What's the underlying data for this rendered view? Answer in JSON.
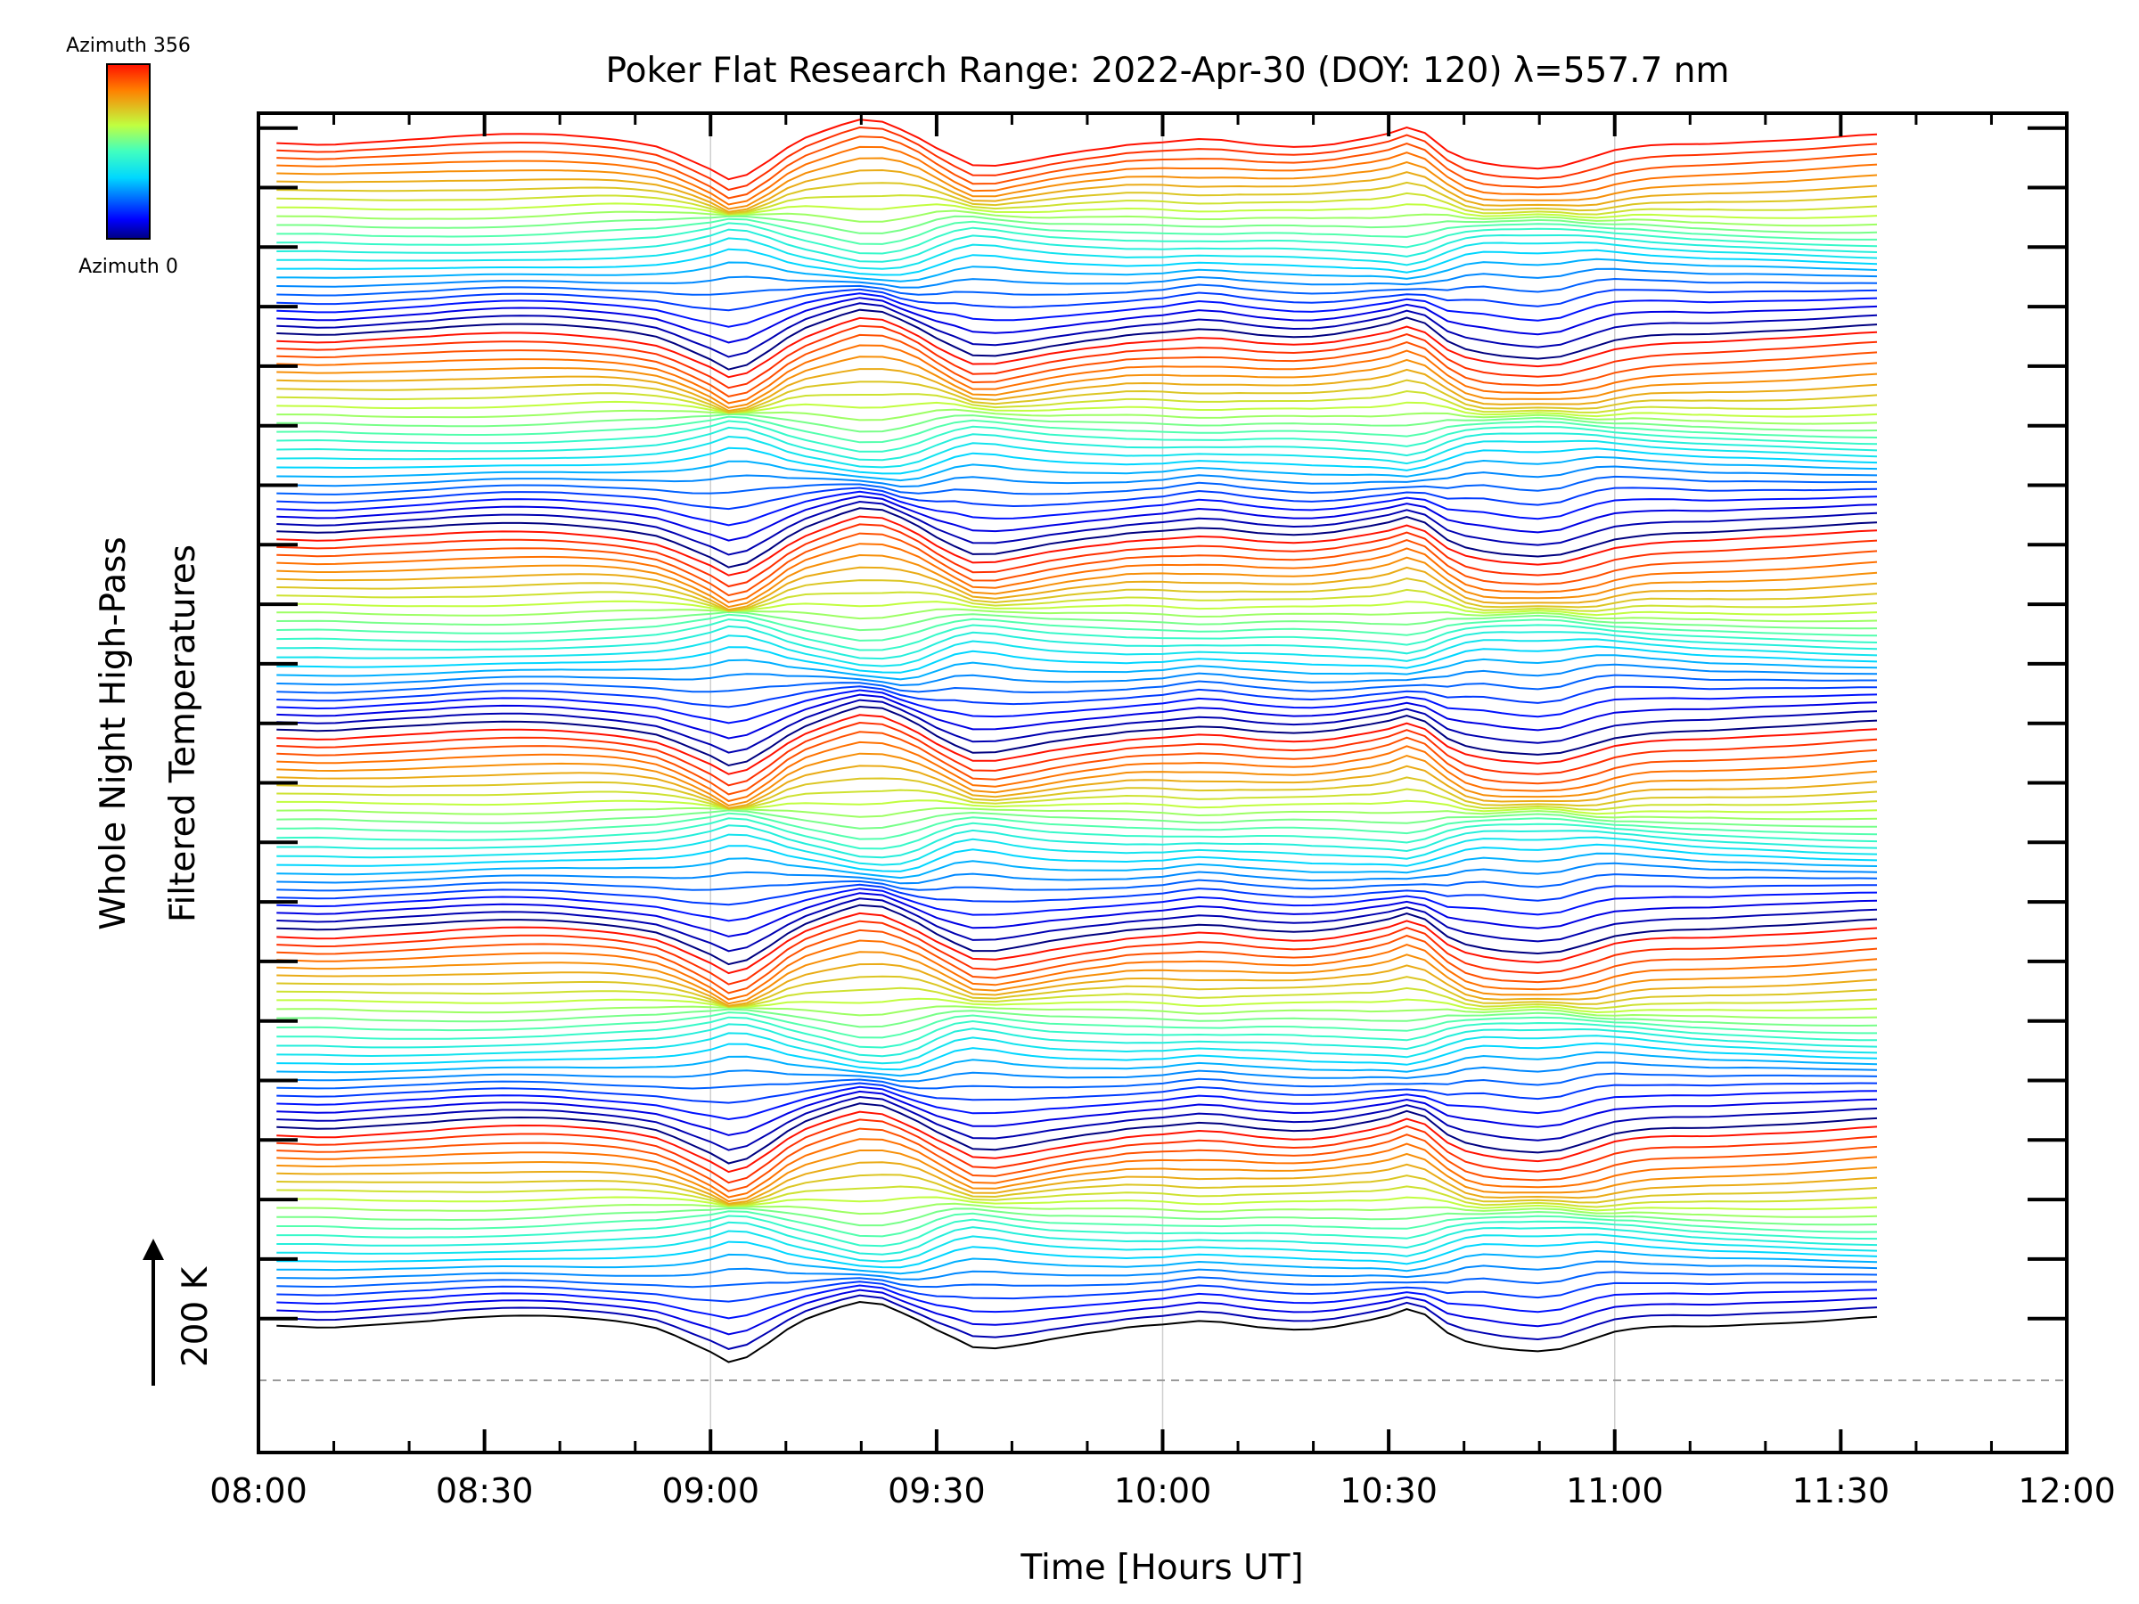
{
  "chart_data": {
    "type": "line",
    "title": "Poker Flat Research Range: 2022-Apr-30 (DOY: 120) λ=557.7 nm",
    "xlabel": "Time [Hours UT]",
    "ylabel_line1": "Whole Night High-Pass",
    "ylabel_line2": "Filtered Temperatures",
    "scale_label": "200 K",
    "xlim_hours": [
      8.0,
      12.0
    ],
    "x_ticks": [
      {
        "label": "08:00",
        "value": 8.0
      },
      {
        "label": "08:30",
        "value": 8.5
      },
      {
        "label": "09:00",
        "value": 9.0
      },
      {
        "label": "09:30",
        "value": 9.5
      },
      {
        "label": "10:00",
        "value": 10.0
      },
      {
        "label": "10:30",
        "value": 10.5
      },
      {
        "label": "11:00",
        "value": 11.0
      },
      {
        "label": "11:30",
        "value": 11.5
      },
      {
        "label": "12:00",
        "value": 12.0
      }
    ],
    "colorbar": {
      "top_label": "Azimuth 356",
      "bottom_label": "Azimuth 0"
    },
    "grid": "vertical lines at 09:00, 10:00, 11:00",
    "baseline": "dashed gray reference line under the bottom trace",
    "n_series": 144,
    "series_offset_K": 200,
    "time_hours": [
      8.04,
      8.08,
      8.13,
      8.17,
      8.21,
      8.25,
      8.29,
      8.33,
      8.38,
      8.42,
      8.46,
      8.5,
      8.54,
      8.58,
      8.63,
      8.67,
      8.71,
      8.75,
      8.79,
      8.83,
      8.88,
      8.92,
      8.96,
      9.0,
      9.04,
      9.08,
      9.13,
      9.17,
      9.21,
      9.25,
      9.29,
      9.33,
      9.38,
      9.42,
      9.46,
      9.5,
      9.54,
      9.58,
      9.63,
      9.67,
      9.71,
      9.75,
      9.79,
      9.83,
      9.88,
      9.92,
      9.96,
      10.0,
      10.04,
      10.08,
      10.13,
      10.17,
      10.21,
      10.25,
      10.29,
      10.33,
      10.38,
      10.42,
      10.46,
      10.5,
      10.54,
      10.58,
      10.63,
      10.67,
      10.71,
      10.75,
      10.79,
      10.83,
      10.88,
      10.92,
      10.96,
      11.0,
      11.04,
      11.08,
      11.13,
      11.17,
      11.21,
      11.25,
      11.29,
      11.33,
      11.38,
      11.42,
      11.46,
      11.5,
      11.54,
      11.58
    ],
    "signal_sources": [
      {
        "name": "S1",
        "deviation_K": [
          0,
          -2,
          -5,
          -3,
          3,
          8,
          12,
          16,
          20,
          25,
          28,
          30,
          31,
          30,
          27,
          22,
          15,
          8,
          0,
          -10,
          -25,
          -50,
          -80,
          -110,
          -150,
          -135,
          -80,
          -30,
          10,
          40,
          70,
          95,
          90,
          60,
          20,
          -30,
          -70,
          -100,
          -95,
          -80,
          -65,
          -50,
          -40,
          -30,
          -20,
          -10,
          -5,
          0,
          5,
          10,
          8,
          0,
          -8,
          -12,
          -14,
          -10,
          -2,
          10,
          22,
          35,
          55,
          30,
          -40,
          -70,
          -85,
          -95,
          -100,
          -105,
          -98,
          -80,
          -60,
          -40,
          -30,
          -20,
          -12,
          -8,
          -5,
          0,
          5,
          10,
          15,
          20,
          25,
          30,
          35,
          38
        ]
      },
      {
        "name": "S2",
        "deviation_K": [
          -20,
          -20,
          -20,
          -20,
          -18,
          -15,
          -12,
          -10,
          -8,
          -5,
          -2,
          0,
          0,
          -2,
          -5,
          -8,
          -12,
          -14,
          -14,
          -10,
          -2,
          10,
          30,
          60,
          100,
          95,
          60,
          20,
          0,
          -10,
          -20,
          -30,
          -40,
          -50,
          -40,
          -10,
          30,
          60,
          60,
          45,
          35,
          25,
          15,
          10,
          5,
          0,
          5,
          10,
          25,
          35,
          30,
          20,
          15,
          10,
          5,
          0,
          -5,
          -10,
          -10,
          -20,
          -40,
          -20,
          30,
          80,
          100,
          95,
          85,
          80,
          90,
          110,
          120,
          110,
          95,
          85,
          80,
          75,
          70,
          70,
          70,
          68,
          65,
          60,
          55,
          50,
          45,
          40
        ]
      },
      {
        "name": "S3",
        "deviation_K": [
          -10,
          -12,
          -15,
          -18,
          -20,
          -20,
          -18,
          -15,
          -10,
          -5,
          0,
          5,
          10,
          15,
          20,
          25,
          28,
          30,
          30,
          28,
          20,
          10,
          0,
          -10,
          -15,
          -5,
          10,
          20,
          25,
          20,
          10,
          0,
          -10,
          -15,
          -5,
          15,
          25,
          10,
          -10,
          -20,
          -25,
          -25,
          -20,
          -15,
          -10,
          -5,
          0,
          0,
          5,
          10,
          5,
          0,
          -5,
          -10,
          -15,
          -20,
          -15,
          -10,
          -5,
          5,
          20,
          25,
          10,
          0,
          -5,
          -10,
          -15,
          -15,
          -10,
          0,
          10,
          20,
          25,
          20,
          10,
          0,
          -5,
          -10,
          -12,
          -15,
          -18,
          -20,
          -20,
          -18,
          -15,
          -12
        ]
      }
    ],
    "ylim_K": [
      -450,
      4050
    ]
  }
}
